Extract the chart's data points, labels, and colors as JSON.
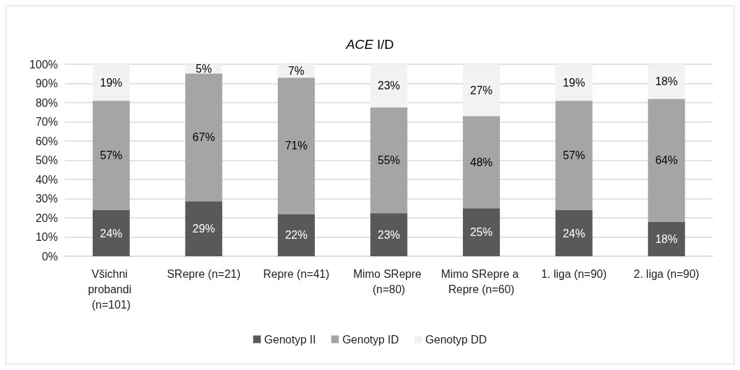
{
  "chart_data": {
    "type": "bar",
    "title": "ACE I/D",
    "categories": [
      "Všichni probandi (n=101)",
      "SRepre (n=21)",
      "Repre (n=41)",
      "Mimo SRepre (n=80)",
      "Mimo SRepre a Repre (n=60)",
      "1. liga (n=90)",
      "2. liga (n=90)"
    ],
    "series": [
      {
        "name": "Genotyp II",
        "color": "#595959",
        "values": [
          24,
          28.6,
          22,
          22.5,
          25,
          24,
          18
        ],
        "value_labels": [
          "24%",
          "29%",
          "22%",
          "23%",
          "25%",
          "24%",
          "18%"
        ]
      },
      {
        "name": "Genotyp ID",
        "color": "#a5a5a5",
        "values": [
          57,
          66.6,
          71,
          55,
          48,
          57,
          64
        ],
        "value_labels": [
          "57%",
          "67%",
          "71%",
          "55%",
          "48%",
          "57%",
          "64%"
        ]
      },
      {
        "name": "Genotyp DD",
        "color": "#f2f2f2",
        "values": [
          19,
          4.8,
          7,
          22.5,
          27,
          19,
          18
        ],
        "value_labels": [
          "19%",
          "5%",
          "7%",
          "23%",
          "27%",
          "19%",
          "18%"
        ]
      }
    ],
    "stacked": true,
    "ylim": [
      0,
      100
    ],
    "yticks": [
      {
        "value": 0,
        "label": "0%"
      },
      {
        "value": 10,
        "label": "10%"
      },
      {
        "value": 20,
        "label": "20%"
      },
      {
        "value": 30,
        "label": "30%"
      },
      {
        "value": 40,
        "label": "40%"
      },
      {
        "value": 50,
        "label": "50%"
      },
      {
        "value": 60,
        "label": "60%"
      },
      {
        "value": 70,
        "label": "70%"
      },
      {
        "value": 80,
        "label": "80%"
      },
      {
        "value": 90,
        "label": "90%"
      },
      {
        "value": 100,
        "label": "100%"
      }
    ],
    "grid": "y",
    "legend": "bottom"
  }
}
